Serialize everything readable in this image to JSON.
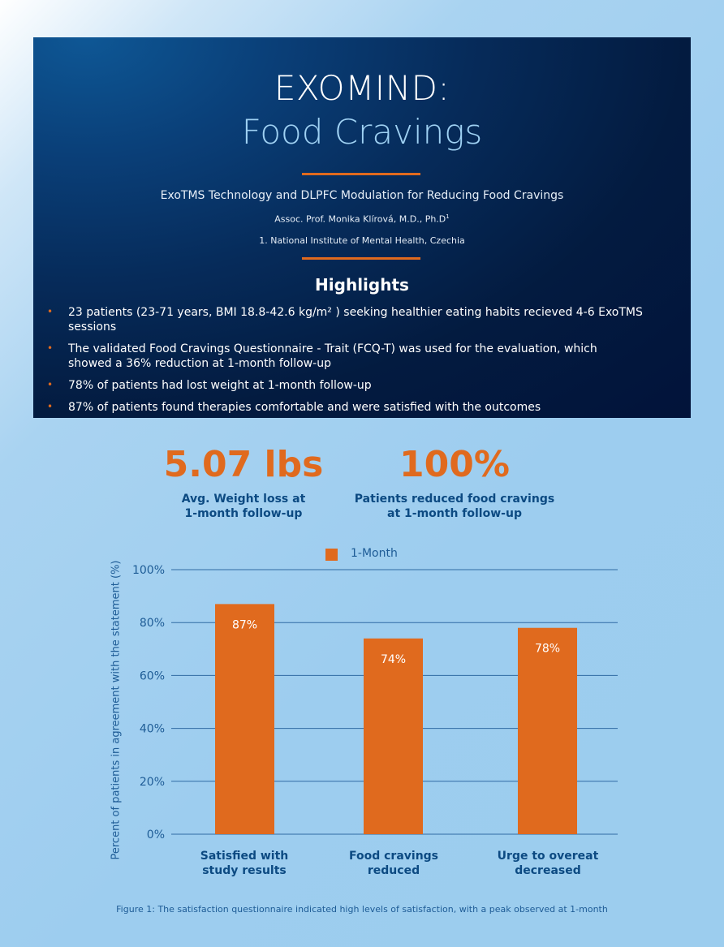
{
  "header": {
    "title_line1": "EXOMIND:",
    "title_line2": "Food Cravings",
    "subtitle": "ExoTMS Technology and DLPFC Modulation for Reducing Food Cravings",
    "author": "Assoc. Prof. Monika Klírová, M.D., Ph.D",
    "author_sup": "1",
    "affiliation": "1. National Institute of Mental Health, Czechia"
  },
  "highlights": {
    "title": "Highlights",
    "items": [
      "23 patients  (23-71 years, BMI 18.8-42.6 kg/m² ) seeking healthier eating habits recieved 4-6 ExoTMS sessions",
      "The validated Food Cravings Questionnaire - Trait (FCQ-T) was used for the evaluation, which showed a 36% reduction at 1-month follow-up",
      "78% of patients had lost weight at 1-month follow-up",
      "87% of patients found therapies comfortable and were satisfied with the outcomes"
    ],
    "bullet_glyph": "•"
  },
  "stats": [
    {
      "value": "5.07 lbs",
      "label_line1": "Avg. Weight loss at",
      "label_line2": "1-month follow-up"
    },
    {
      "value": "100%",
      "label_line1": "Patients reduced food cravings",
      "label_line2": "at 1-month follow-up"
    }
  ],
  "colors": {
    "accent": "#e06a1e",
    "navy": "#02133a",
    "text_blue": "#1e5c96",
    "grid": "#2f6aa3"
  },
  "chart_data": {
    "type": "bar",
    "categories": [
      {
        "line1": "Satisfied with",
        "line2": "study results"
      },
      {
        "line1": "Food cravings",
        "line2": "reduced"
      },
      {
        "line1": "Urge to overeat",
        "line2": "decreased"
      }
    ],
    "series": [
      {
        "name": "1-Month",
        "values": [
          87,
          74,
          78
        ],
        "labels": [
          "87%",
          "74%",
          "78%"
        ]
      }
    ],
    "ylabel": "Percent of patients in agreement with the statement (%)",
    "ylim": [
      0,
      100
    ],
    "yticks": [
      0,
      20,
      40,
      60,
      80,
      100
    ],
    "ytick_labels": [
      "0%",
      "20%",
      "40%",
      "60%",
      "80%",
      "100%"
    ],
    "grid": true,
    "legend_position": "top-center",
    "caption": "Figure 1: The satisfaction questionnaire indicated high levels of satisfaction, with a peak observed at 1-month"
  }
}
